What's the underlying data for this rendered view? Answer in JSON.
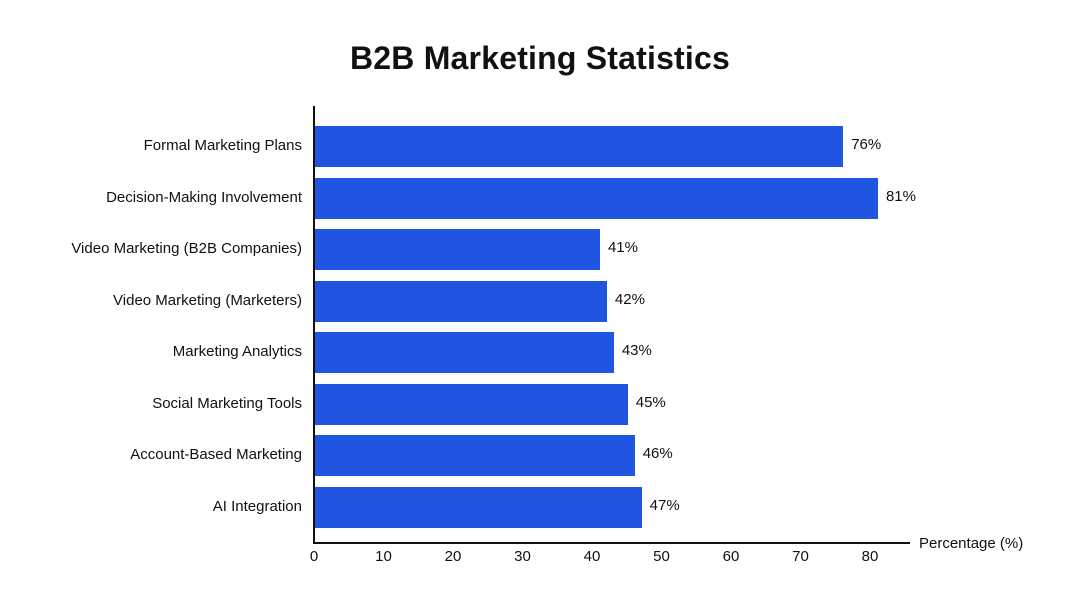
{
  "chart_data": {
    "type": "bar",
    "orientation": "horizontal",
    "title": "B2B Marketing Statistics",
    "xlabel": "Percentage (%)",
    "ylabel": "",
    "xlim": [
      0,
      85
    ],
    "xticks": [
      0,
      10,
      20,
      30,
      40,
      50,
      60,
      70,
      80
    ],
    "grid": false,
    "legend": null,
    "bar_color": "#1f55e0",
    "categories": [
      "Formal Marketing Plans",
      "Decision-Making Involvement",
      "Video Marketing (B2B Companies)",
      "Video Marketing (Marketers)",
      "Marketing Analytics",
      "Social Marketing Tools",
      "Account-Based Marketing",
      "AI Integration"
    ],
    "values": [
      76,
      81,
      41,
      42,
      43,
      45,
      46,
      47
    ],
    "value_labels": [
      "76%",
      "81%",
      "41%",
      "42%",
      "43%",
      "45%",
      "46%",
      "47%"
    ]
  }
}
